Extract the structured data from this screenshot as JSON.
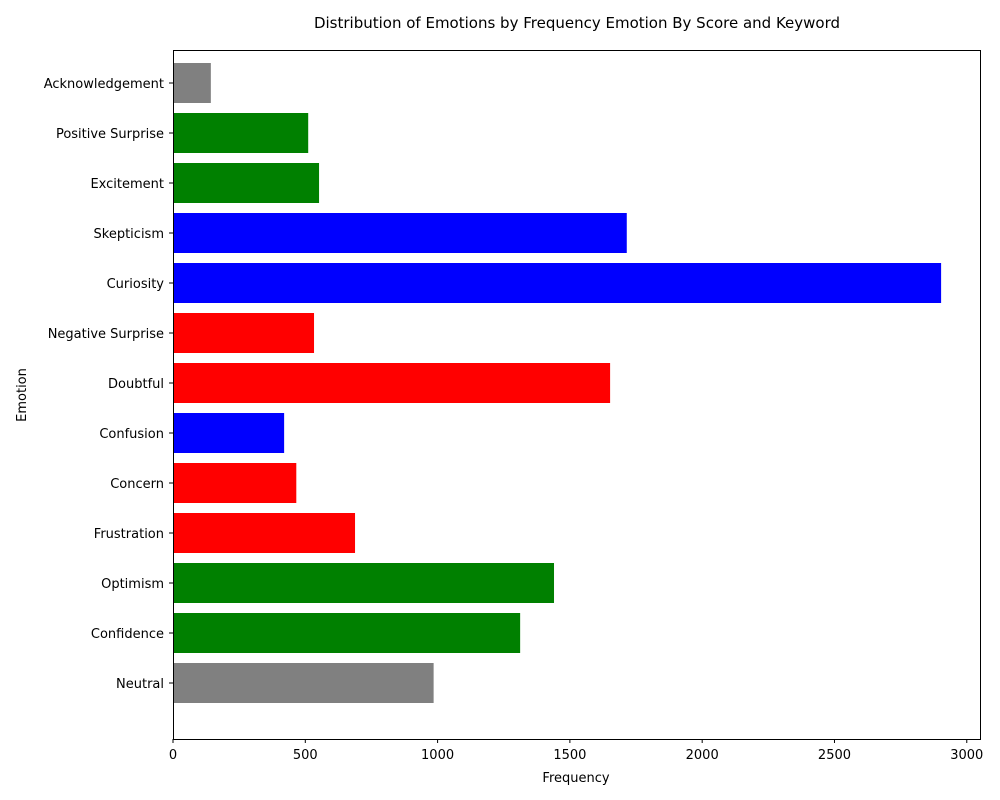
{
  "chart_data": {
    "type": "bar",
    "orientation": "horizontal",
    "title": "Distribution of Emotions by Frequency Emotion By Score and Keyword",
    "xlabel": "Frequency",
    "ylabel": "Emotion",
    "xlim": [
      0,
      3050
    ],
    "xticks": [
      0,
      500,
      1000,
      1500,
      2000,
      2500,
      3000
    ],
    "grid": false,
    "legend": "none",
    "categories": [
      "Neutral",
      "Confidence",
      "Optimism",
      "Frustration",
      "Concern",
      "Confusion",
      "Doubtful",
      "Negative Surprise",
      "Curiosity",
      "Skepticism",
      "Excitement",
      "Positive Surprise",
      "Acknowledgement"
    ],
    "values": [
      985,
      1312,
      1440,
      688,
      466,
      420,
      1652,
      533,
      2903,
      1715,
      552,
      511,
      143
    ],
    "colors": [
      "#808080",
      "#008000",
      "#008000",
      "#ff0000",
      "#ff0000",
      "#0000ff",
      "#ff0000",
      "#ff0000",
      "#0000ff",
      "#0000ff",
      "#008000",
      "#008000",
      "#808080"
    ]
  }
}
